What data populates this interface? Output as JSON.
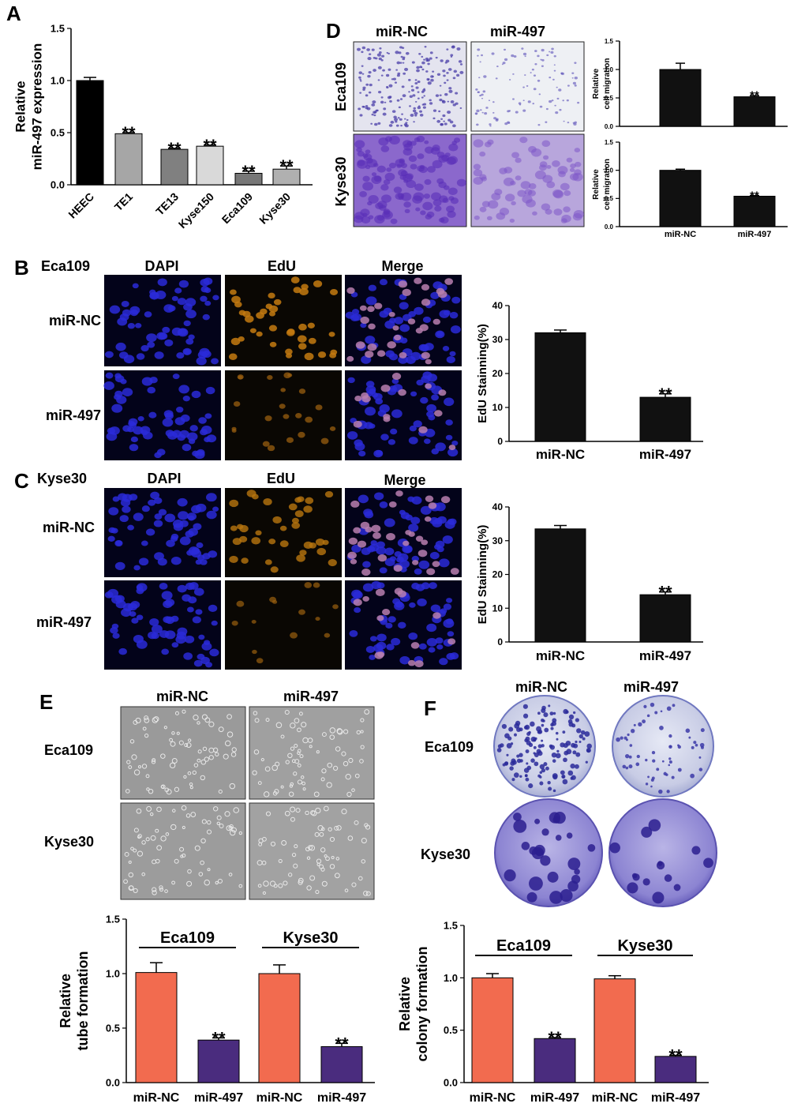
{
  "panels": {
    "A": {
      "label": "A"
    },
    "B": {
      "label": "B",
      "cell_line": "Eca109",
      "columns": [
        "DAPI",
        "EdU",
        "Merge"
      ],
      "rows": [
        "miR-NC",
        "miR-497"
      ]
    },
    "C": {
      "label": "C",
      "cell_line": "Kyse30",
      "columns": [
        "DAPI",
        "EdU",
        "Merge"
      ],
      "rows": [
        "miR-NC",
        "miR-497"
      ]
    },
    "D": {
      "label": "D",
      "columns": [
        "miR-NC",
        "miR-497"
      ],
      "rows": [
        "Eca109",
        "Kyse30"
      ]
    },
    "E": {
      "label": "E",
      "columns": [
        "miR-NC",
        "miR-497"
      ],
      "rows": [
        "Eca109",
        "Kyse30"
      ]
    },
    "F": {
      "label": "F",
      "columns": [
        "miR-NC",
        "miR-497"
      ],
      "rows": [
        "Eca109",
        "Kyse30"
      ]
    }
  },
  "chart_data": [
    {
      "id": "A",
      "type": "bar",
      "categories": [
        "HEEC",
        "TE1",
        "TE13",
        "Kyse150",
        "Eca109",
        "Kyse30"
      ],
      "values": [
        1.0,
        0.49,
        0.34,
        0.37,
        0.11,
        0.15
      ],
      "errors": [
        0.03,
        0.01,
        0.01,
        0.01,
        0.02,
        0.03
      ],
      "significance": [
        "",
        "**",
        "**",
        "**",
        "**",
        "**"
      ],
      "ylabel": "Relative miR-497 expression",
      "ylim": [
        0,
        1.5
      ],
      "yticks": [
        "0.0",
        "0.5",
        "1.0",
        "1.5"
      ],
      "colors": [
        "#000000",
        "#a6a6a6",
        "#808080",
        "#d9d9d9",
        "#777777",
        "#b0b0b0"
      ]
    },
    {
      "id": "D-Eca109",
      "type": "bar",
      "categories": [
        "miR-NC",
        "miR-497"
      ],
      "values": [
        1.0,
        0.52
      ],
      "errors": [
        0.11,
        0.02
      ],
      "significance": [
        "",
        "**"
      ],
      "ylabel": "Relative cell migration",
      "ylim": [
        0,
        1.5
      ],
      "yticks": [
        "0.0",
        "0.5",
        "1.0",
        "1.5"
      ]
    },
    {
      "id": "D-Kyse30",
      "type": "bar",
      "categories": [
        "miR-NC",
        "miR-497"
      ],
      "values": [
        1.0,
        0.54
      ],
      "errors": [
        0.02,
        0.01
      ],
      "significance": [
        "",
        "**"
      ],
      "ylabel": "Relative cell migration",
      "ylim": [
        0,
        1.5
      ],
      "yticks": [
        "0.0",
        "0.5",
        "1.0",
        "1.5"
      ]
    },
    {
      "id": "B",
      "type": "bar",
      "categories": [
        "miR-NC",
        "miR-497"
      ],
      "values": [
        32,
        13
      ],
      "errors": [
        0.8,
        1.0
      ],
      "significance": [
        "",
        "**"
      ],
      "ylabel": "EdU Stainning(%)",
      "ylim": [
        0,
        40
      ],
      "yticks": [
        "0",
        "10",
        "20",
        "30",
        "40"
      ]
    },
    {
      "id": "C",
      "type": "bar",
      "categories": [
        "miR-NC",
        "miR-497"
      ],
      "values": [
        33.5,
        14
      ],
      "errors": [
        1.0,
        0.8
      ],
      "significance": [
        "",
        "**"
      ],
      "ylabel": "EdU Stainning(%)",
      "ylim": [
        0,
        40
      ],
      "yticks": [
        "0",
        "10",
        "20",
        "30",
        "40"
      ]
    },
    {
      "id": "E",
      "type": "bar",
      "categories": [
        "miR-NC",
        "miR-497",
        "miR-NC",
        "miR-497"
      ],
      "groups": [
        "Eca109",
        "Kyse30"
      ],
      "values": [
        1.01,
        0.39,
        1.0,
        0.33
      ],
      "errors": [
        0.09,
        0.02,
        0.08,
        0.03
      ],
      "significance": [
        "",
        "**",
        "",
        "**"
      ],
      "ylabel": "Relative tube formation",
      "ylim": [
        0,
        1.5
      ],
      "yticks": [
        "0.0",
        "0.5",
        "1.0",
        "1.5"
      ],
      "colors": [
        "#f26b4f",
        "#4a2c7e",
        "#f26b4f",
        "#4a2c7e"
      ]
    },
    {
      "id": "F",
      "type": "bar",
      "categories": [
        "miR-NC",
        "miR-497",
        "miR-NC",
        "miR-497"
      ],
      "groups": [
        "Eca109",
        "Kyse30"
      ],
      "values": [
        1.0,
        0.42,
        0.99,
        0.25
      ],
      "errors": [
        0.04,
        0.01,
        0.03,
        0.01
      ],
      "significance": [
        "",
        "**",
        "",
        "**"
      ],
      "ylabel": "Relative colony formation",
      "ylim": [
        0,
        1.5
      ],
      "yticks": [
        "0.0",
        "0.5",
        "1.0",
        "1.5"
      ],
      "colors": [
        "#f26b4f",
        "#4a2c7e",
        "#f26b4f",
        "#4a2c7e"
      ]
    }
  ]
}
